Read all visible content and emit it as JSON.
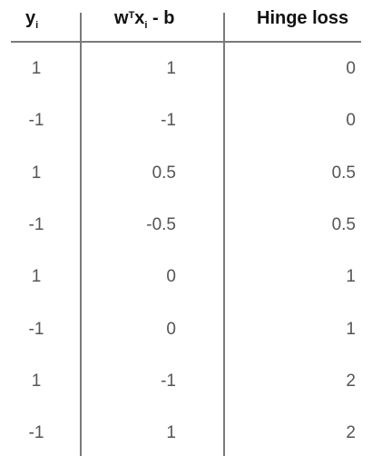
{
  "table": {
    "headers": {
      "y": {
        "base": "y",
        "sub": "i"
      },
      "score": {
        "w": "w",
        "sup": "T",
        "x": "x",
        "sub": "i",
        "rest": " - b"
      },
      "loss": "Hinge loss"
    },
    "rows": [
      {
        "y": "1",
        "score": "1",
        "loss": "0"
      },
      {
        "y": "-1",
        "score": "-1",
        "loss": "0"
      },
      {
        "y": "1",
        "score": "0.5",
        "loss": "0.5"
      },
      {
        "y": "-1",
        "score": "-0.5",
        "loss": "0.5"
      },
      {
        "y": "1",
        "score": "0",
        "loss": "1"
      },
      {
        "y": "-1",
        "score": "0",
        "loss": "1"
      },
      {
        "y": "1",
        "score": "-1",
        "loss": "2"
      },
      {
        "y": "-1",
        "score": "1",
        "loss": "2"
      }
    ]
  }
}
